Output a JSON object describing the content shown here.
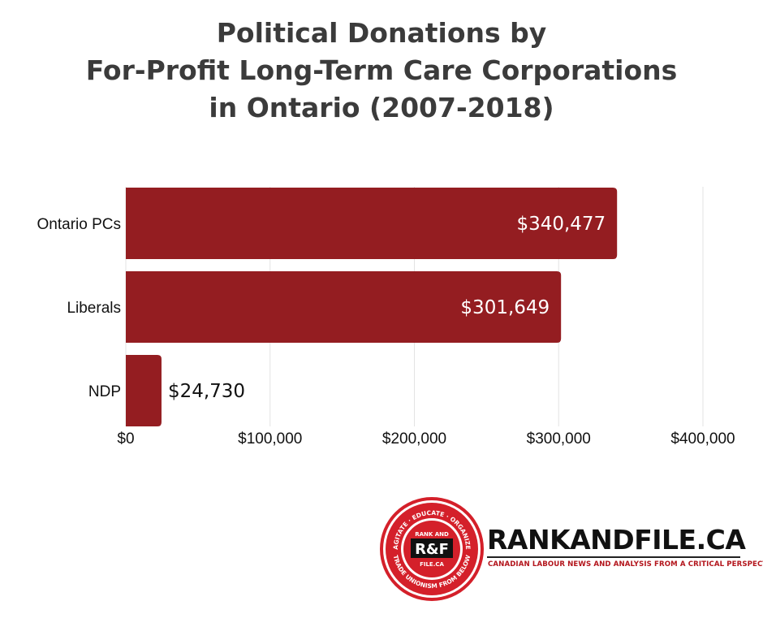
{
  "title_lines": [
    "Political Donations by",
    "For-Profit Long-Term Care Corporations",
    "in Ontario (2007-2018)"
  ],
  "chart_data": {
    "type": "bar",
    "orientation": "horizontal",
    "title": "Political Donations by For-Profit Long-Term Care Corporations in Ontario (2007-2018)",
    "categories": [
      "Ontario PCs",
      "Liberals",
      "NDP"
    ],
    "values": [
      340477,
      301649,
      24730
    ],
    "value_labels": [
      "$340,477",
      "$301,649",
      "$24,730"
    ],
    "xlim": [
      0,
      400000
    ],
    "x_ticks": [
      0,
      100000,
      200000,
      300000,
      400000
    ],
    "x_tick_labels": [
      "$0",
      "$100,000",
      "$200,000",
      "$300,000",
      "$400,000"
    ],
    "bar_color": "#941d21",
    "grid": true,
    "legend": false
  },
  "brand": {
    "name": "RANKANDFILE.CA",
    "tagline": "CANADIAN LABOUR NEWS AND ANALYSIS FROM A CRITICAL PERSPECTIVE",
    "badge_center": "R&F",
    "badge_top": "RANK AND",
    "badge_bottom": "FILE.CA",
    "ring_top": "AGITATE · EDUCATE · ORGANIZE",
    "ring_bottom": "TRADE UNIONISM FROM BELOW",
    "accent_color": "#d4202a"
  }
}
